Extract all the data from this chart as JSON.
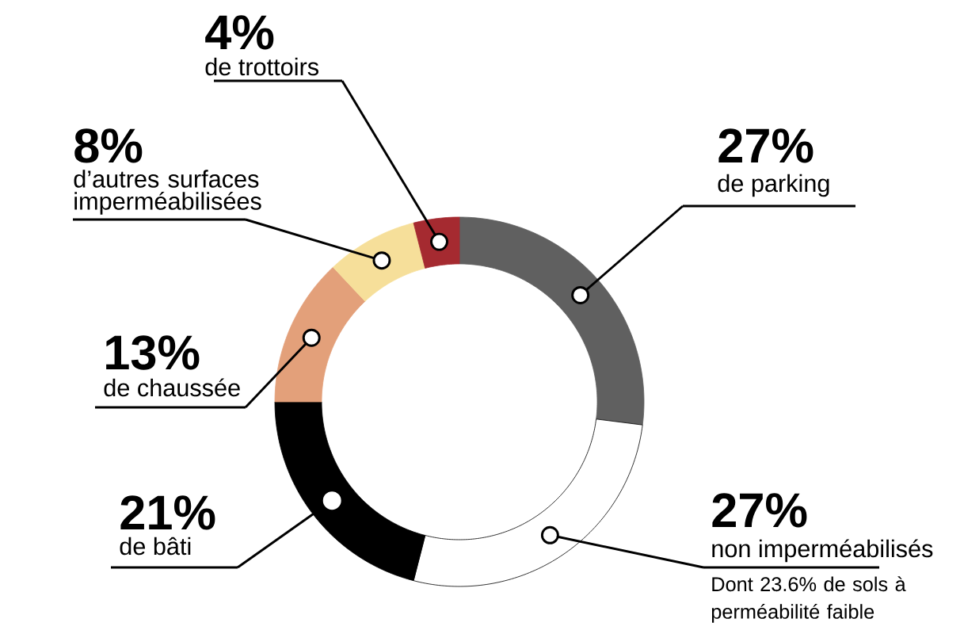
{
  "chart_data": {
    "type": "donut",
    "categories": [
      "de parking",
      "non imperméabilisés",
      "de bâti",
      "de chaussée",
      "d’autres surfaces imperméabilisées",
      "de trottoirs"
    ],
    "values": [
      27,
      27,
      21,
      13,
      8,
      4
    ],
    "value_labels": [
      "27%",
      "27%",
      "21%",
      "13%",
      "8%",
      "4%"
    ],
    "colors": [
      "#606060",
      "#ffffff",
      "#000000",
      "#e3a07a",
      "#f6df9a",
      "#a52a30"
    ],
    "annotations": [
      "Dont 23.6% de sols à perméabilité faible"
    ]
  }
}
